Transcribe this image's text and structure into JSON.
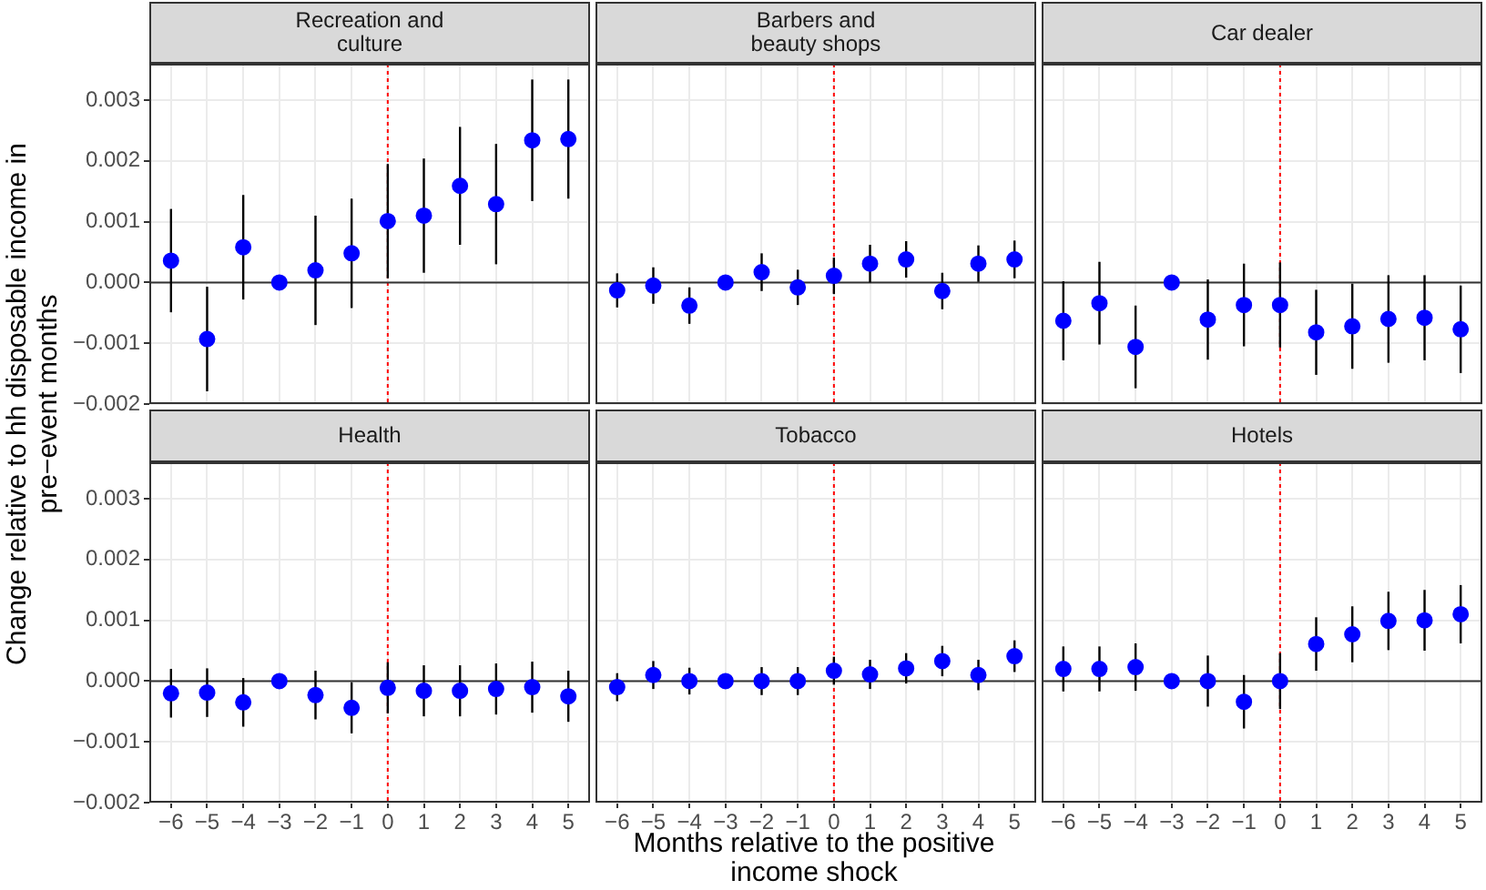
{
  "chart_data": [
    {
      "type": "scatter",
      "title": "Recreation and culture",
      "ylabel": "Change relative to hh disposable income in pre−event months",
      "x": [
        -6,
        -5,
        -4,
        -3,
        -2,
        -1,
        0,
        1,
        2,
        3,
        4,
        5
      ],
      "values": [
        0.00036,
        -0.00093,
        0.00058,
        0,
        0.0002,
        0.00048,
        0.00101,
        0.0011,
        0.00159,
        0.00129,
        0.00234,
        0.00236
      ],
      "errors": [
        0.00085,
        0.00086,
        0.00086,
        null,
        0.0009,
        0.0009,
        0.00094,
        0.00094,
        0.00097,
        0.00099,
        0.001,
        0.00098
      ],
      "color": "#0000ff",
      "marker": "circle",
      "grid": true,
      "xlim": [
        -6.6,
        5.6
      ],
      "ylim": [
        -0.002,
        0.0036
      ],
      "xticks": [
        {
          "value": -6,
          "label": null
        },
        {
          "value": -5,
          "label": null
        },
        {
          "value": -4,
          "label": null
        },
        {
          "value": -3,
          "label": null
        },
        {
          "value": -2,
          "label": null
        },
        {
          "value": -1,
          "label": null
        },
        {
          "value": 0,
          "label": null
        },
        {
          "value": 1,
          "label": null
        },
        {
          "value": 2,
          "label": null
        },
        {
          "value": 3,
          "label": null
        },
        {
          "value": 4,
          "label": null
        },
        {
          "value": 5,
          "label": null
        }
      ],
      "yticks": [
        {
          "value": -0.002,
          "label": "−0.002"
        },
        {
          "value": -0.001,
          "label": "−0.001"
        },
        {
          "value": 0,
          "label": "0.000"
        },
        0.001,
        0.002,
        0.003
      ],
      "tick_labels": "y",
      "ref_lines": [
        {
          "axis": "x",
          "value": 0,
          "color": "#ff0000",
          "line_style": "dotted"
        },
        {
          "axis": "y",
          "value": 0,
          "color": "#333333",
          "line_style": "solid"
        }
      ]
    },
    {
      "type": "scatter",
      "title": "Barbers and beauty shops",
      "x": [
        -6,
        -5,
        -4,
        -3,
        -2,
        -1,
        0,
        1,
        2,
        3,
        4,
        5
      ],
      "values": [
        -0.00013,
        -5e-05,
        -0.00038,
        0,
        0.00017,
        -8e-05,
        0.00011,
        0.00031,
        0.00038,
        -0.00014,
        0.00031,
        0.00038
      ],
      "errors": [
        0.00028,
        0.0003,
        0.0003,
        null,
        0.00031,
        0.00029,
        0.0003,
        0.00031,
        0.0003,
        0.0003,
        0.0003,
        0.00031
      ],
      "color": "#0000ff",
      "marker": "circle",
      "grid": true,
      "xlim": [
        -6.6,
        5.6
      ],
      "ylim": [
        -0.002,
        0.0036
      ],
      "xticks": [
        {
          "value": -6,
          "label": null
        },
        {
          "value": -5,
          "label": null
        },
        {
          "value": -4,
          "label": null
        },
        {
          "value": -3,
          "label": null
        },
        {
          "value": -2,
          "label": null
        },
        {
          "value": -1,
          "label": null
        },
        {
          "value": 0,
          "label": null
        },
        {
          "value": 1,
          "label": null
        },
        {
          "value": 2,
          "label": null
        },
        {
          "value": 3,
          "label": null
        },
        {
          "value": 4,
          "label": null
        },
        {
          "value": 5,
          "label": null
        }
      ],
      "yticks": [
        {
          "value": -0.002,
          "label": null
        },
        {
          "value": -0.001,
          "label": null
        },
        {
          "value": 0,
          "label": null
        },
        {
          "value": 0.001,
          "label": null
        },
        {
          "value": 0.002,
          "label": null
        },
        {
          "value": 0.003,
          "label": null
        }
      ],
      "tick_labels": false,
      "ref_lines": [
        {
          "axis": "x",
          "value": 0,
          "color": "#ff0000",
          "line_style": "dotted"
        },
        {
          "axis": "y",
          "value": 0,
          "color": "#333333",
          "line_style": "solid"
        }
      ]
    },
    {
      "type": "scatter",
      "title": "Car dealer",
      "x": [
        -6,
        -5,
        -4,
        -3,
        -2,
        -1,
        0,
        1,
        2,
        3,
        4,
        5
      ],
      "values": [
        -0.00063,
        -0.00034,
        -0.00106,
        0,
        -0.00061,
        -0.00037,
        -0.00037,
        -0.00082,
        -0.00072,
        -0.0006,
        -0.00058,
        -0.00077
      ],
      "errors": [
        0.00065,
        0.00068,
        0.00068,
        null,
        0.00066,
        0.00068,
        0.0007,
        0.0007,
        0.0007,
        0.00072,
        0.0007,
        0.00072
      ],
      "color": "#0000ff",
      "marker": "circle",
      "grid": true,
      "xlim": [
        -6.6,
        5.6
      ],
      "ylim": [
        -0.002,
        0.0036
      ],
      "xticks": [
        {
          "value": -6,
          "label": null
        },
        {
          "value": -5,
          "label": null
        },
        {
          "value": -4,
          "label": null
        },
        {
          "value": -3,
          "label": null
        },
        {
          "value": -2,
          "label": null
        },
        {
          "value": -1,
          "label": null
        },
        {
          "value": 0,
          "label": null
        },
        {
          "value": 1,
          "label": null
        },
        {
          "value": 2,
          "label": null
        },
        {
          "value": 3,
          "label": null
        },
        {
          "value": 4,
          "label": null
        },
        {
          "value": 5,
          "label": null
        }
      ],
      "yticks": [
        {
          "value": -0.002,
          "label": null
        },
        {
          "value": -0.001,
          "label": null
        },
        {
          "value": 0,
          "label": null
        },
        {
          "value": 0.001,
          "label": null
        },
        {
          "value": 0.002,
          "label": null
        },
        {
          "value": 0.003,
          "label": null
        }
      ],
      "tick_labels": false,
      "ref_lines": [
        {
          "axis": "x",
          "value": 0,
          "color": "#ff0000",
          "line_style": "dotted"
        },
        {
          "axis": "y",
          "value": 0,
          "color": "#333333",
          "line_style": "solid"
        }
      ]
    },
    {
      "type": "scatter",
      "title": "Health",
      "x": [
        -6,
        -5,
        -4,
        -3,
        -2,
        -1,
        0,
        1,
        2,
        3,
        4,
        5
      ],
      "values": [
        -0.0002,
        -0.00019,
        -0.00035,
        0,
        -0.00023,
        -0.00044,
        -0.00011,
        -0.00016,
        -0.00016,
        -0.00013,
        -0.0001,
        -0.00025
      ],
      "errors": [
        0.0004,
        0.0004,
        0.0004,
        null,
        0.0004,
        0.00042,
        0.00042,
        0.00042,
        0.00042,
        0.00042,
        0.00042,
        0.00042
      ],
      "color": "#0000ff",
      "marker": "circle",
      "grid": true,
      "xlim": [
        -6.6,
        5.6
      ],
      "ylim": [
        -0.002,
        0.0036
      ],
      "xticks": [
        {
          "value": -6,
          "label": "−6"
        },
        {
          "value": -5,
          "label": "−5"
        },
        {
          "value": -4,
          "label": "−4"
        },
        {
          "value": -3,
          "label": "−3"
        },
        {
          "value": -2,
          "label": "−2"
        },
        {
          "value": -1,
          "label": "−1"
        },
        0,
        1,
        2,
        3,
        4,
        5
      ],
      "yticks": [
        {
          "value": -0.002,
          "label": "−0.002"
        },
        {
          "value": -0.001,
          "label": "−0.001"
        },
        {
          "value": 0,
          "label": "0.000"
        },
        0.001,
        0.002,
        0.003
      ],
      "ref_lines": [
        {
          "axis": "x",
          "value": 0,
          "color": "#ff0000",
          "line_style": "dotted"
        },
        {
          "axis": "y",
          "value": 0,
          "color": "#333333",
          "line_style": "solid"
        }
      ]
    },
    {
      "type": "scatter",
      "title": "Tobacco",
      "xlabel": "Months relative to the positive income shock",
      "x": [
        -6,
        -5,
        -4,
        -3,
        -2,
        -1,
        0,
        1,
        2,
        3,
        4,
        5
      ],
      "values": [
        -0.0001,
        0.0001,
        0,
        0,
        0,
        0,
        0.00017,
        0.00011,
        0.00021,
        0.00033,
        0.0001,
        0.00041
      ],
      "errors": [
        0.00023,
        0.00023,
        0.00022,
        null,
        0.00023,
        0.00023,
        0.00023,
        0.00024,
        0.00025,
        0.00025,
        0.00025,
        0.00026
      ],
      "color": "#0000ff",
      "marker": "circle",
      "grid": true,
      "xlim": [
        -6.6,
        5.6
      ],
      "ylim": [
        -0.002,
        0.0036
      ],
      "xticks": [
        {
          "value": -6,
          "label": "−6"
        },
        {
          "value": -5,
          "label": "−5"
        },
        {
          "value": -4,
          "label": "−4"
        },
        {
          "value": -3,
          "label": "−3"
        },
        {
          "value": -2,
          "label": "−2"
        },
        {
          "value": -1,
          "label": "−1"
        },
        0,
        1,
        2,
        3,
        4,
        5
      ],
      "yticks": [
        {
          "value": -0.002,
          "label": null
        },
        {
          "value": -0.001,
          "label": null
        },
        {
          "value": 0,
          "label": null
        },
        {
          "value": 0.001,
          "label": null
        },
        {
          "value": 0.002,
          "label": null
        },
        {
          "value": 0.003,
          "label": null
        }
      ],
      "tick_labels": "x",
      "ref_lines": [
        {
          "axis": "x",
          "value": 0,
          "color": "#ff0000",
          "line_style": "dotted"
        },
        {
          "axis": "y",
          "value": 0,
          "color": "#333333",
          "line_style": "solid"
        }
      ]
    },
    {
      "type": "scatter",
      "title": "Hotels",
      "x": [
        -6,
        -5,
        -4,
        -3,
        -2,
        -1,
        0,
        1,
        2,
        3,
        4,
        5
      ],
      "values": [
        0.0002,
        0.0002,
        0.00023,
        0,
        0,
        -0.00034,
        0,
        0.00061,
        0.00077,
        0.00099,
        0.001,
        0.0011
      ],
      "errors": [
        0.00037,
        0.00037,
        0.00039,
        null,
        0.00042,
        0.00044,
        0.00046,
        0.00044,
        0.00046,
        0.00048,
        0.0005,
        0.00048
      ],
      "color": "#0000ff",
      "marker": "circle",
      "grid": true,
      "xlim": [
        -6.6,
        5.6
      ],
      "ylim": [
        -0.002,
        0.0036
      ],
      "xticks": [
        {
          "value": -6,
          "label": "−6"
        },
        {
          "value": -5,
          "label": "−5"
        },
        {
          "value": -4,
          "label": "−4"
        },
        {
          "value": -3,
          "label": "−3"
        },
        {
          "value": -2,
          "label": "−2"
        },
        {
          "value": -1,
          "label": "−1"
        },
        0,
        1,
        2,
        3,
        4,
        5
      ],
      "yticks": [
        {
          "value": -0.002,
          "label": null
        },
        {
          "value": -0.001,
          "label": null
        },
        {
          "value": 0,
          "label": null
        },
        {
          "value": 0.001,
          "label": null
        },
        {
          "value": 0.002,
          "label": null
        },
        {
          "value": 0.003,
          "label": null
        }
      ],
      "tick_labels": "x",
      "ref_lines": [
        {
          "axis": "x",
          "value": 0,
          "color": "#ff0000",
          "line_style": "dotted"
        },
        {
          "axis": "y",
          "value": 0,
          "color": "#333333",
          "line_style": "solid"
        }
      ]
    }
  ]
}
